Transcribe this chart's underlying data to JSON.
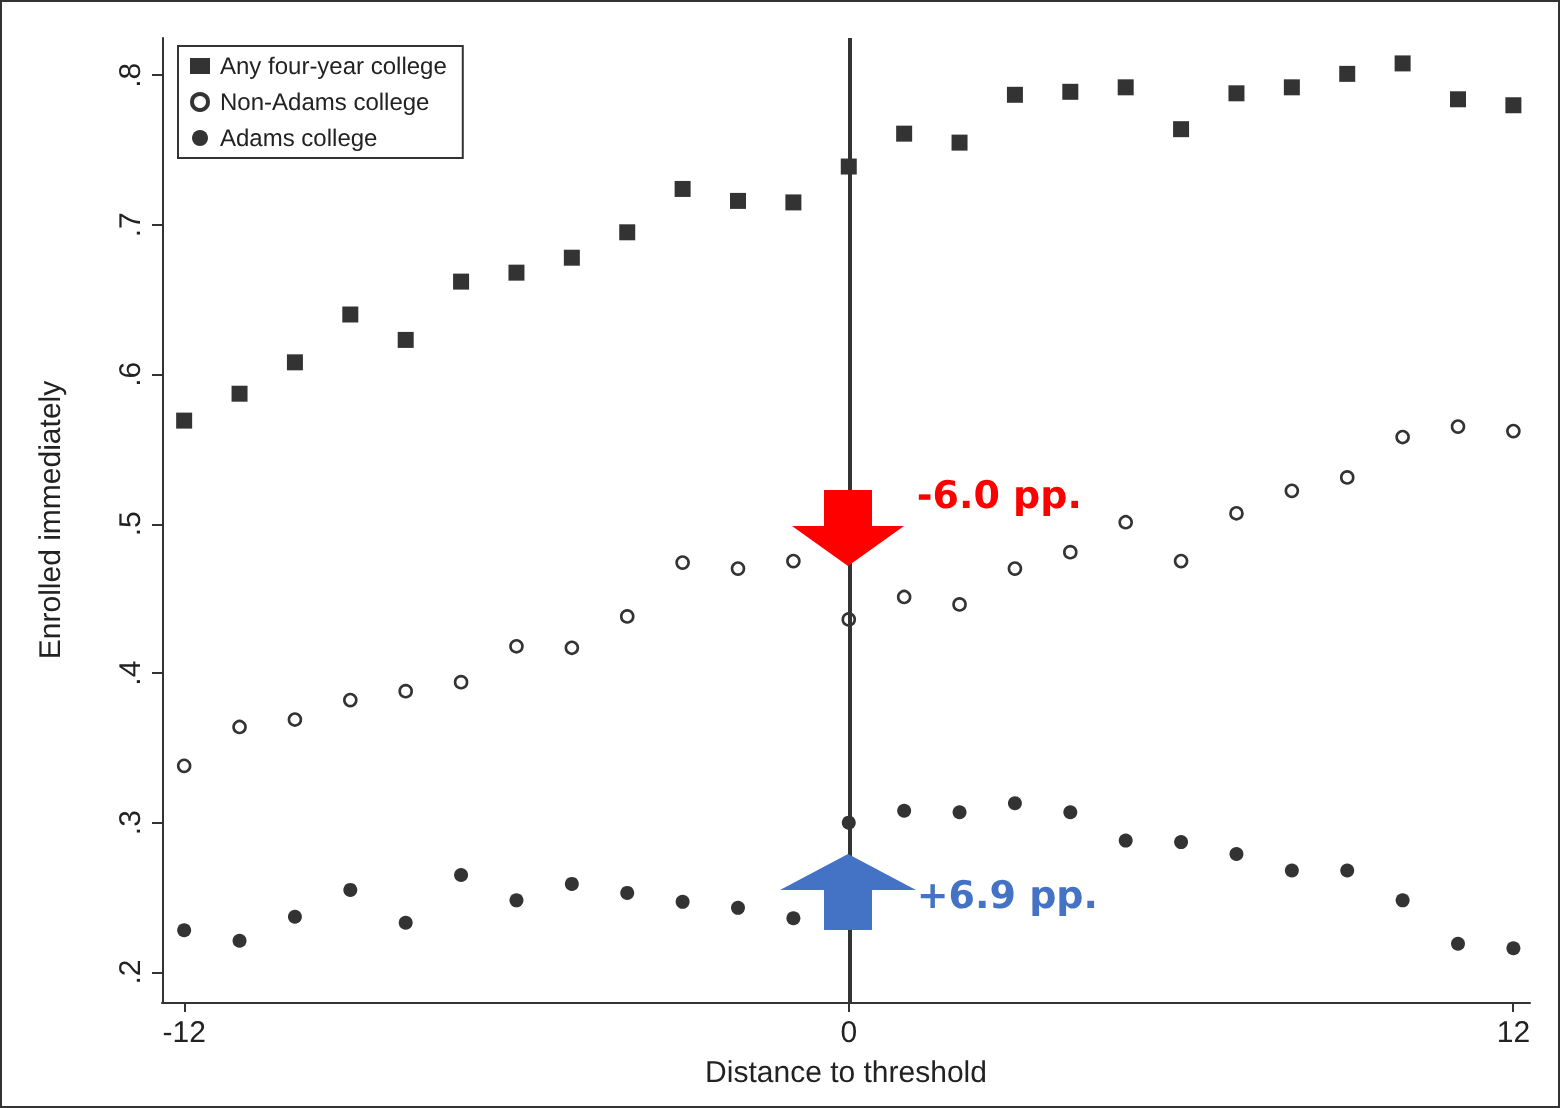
{
  "chart_data": {
    "type": "scatter",
    "xlabel": "Distance to threshold",
    "ylabel": "Enrolled immediately",
    "x": [
      -12,
      -11,
      -10,
      -9,
      -8,
      -7,
      -6,
      -5,
      -4,
      -3,
      -2,
      -1,
      0,
      1,
      2,
      3,
      4,
      5,
      6,
      7,
      8,
      9,
      10,
      11,
      12
    ],
    "series": [
      {
        "name": "Any four-year college",
        "color": "#000000",
        "marker": "square",
        "values": [
          0.569,
          0.587,
          0.608,
          0.64,
          0.623,
          0.662,
          0.668,
          0.678,
          0.695,
          0.724,
          0.716,
          0.715,
          0.739,
          0.761,
          0.755,
          0.787,
          0.789,
          0.792,
          0.764,
          0.788,
          0.792,
          0.801,
          0.808,
          0.784,
          0.78
        ]
      },
      {
        "name": "Non-Adams college",
        "color": "#000000",
        "marker": "circle",
        "values": [
          0.338,
          0.364,
          0.369,
          0.382,
          0.388,
          0.394,
          0.418,
          0.417,
          0.438,
          0.474,
          0.47,
          0.475,
          0.436,
          0.451,
          0.446,
          0.47,
          0.481,
          0.501,
          0.475,
          0.507,
          0.522,
          0.531,
          0.558,
          0.565,
          0.562
        ]
      },
      {
        "name": "Adams college",
        "color": "#000000",
        "marker": "circle",
        "values": [
          0.228,
          0.221,
          0.237,
          0.255,
          0.233,
          0.265,
          0.248,
          0.259,
          0.253,
          0.247,
          0.243,
          0.236,
          0.3,
          0.308,
          0.307,
          0.313,
          0.307,
          0.288,
          0.287,
          0.279,
          0.268,
          0.268,
          0.248,
          0.219,
          0.216
        ]
      }
    ],
    "xlim": [
      -12.4,
      12.3
    ],
    "xticks": [
      -12,
      0,
      12
    ],
    "ylim": [
      0.18,
      0.825
    ],
    "yticks": [
      {
        "value": 0.2,
        "label": ".2"
      },
      {
        "value": 0.3,
        "label": ".3"
      },
      {
        "value": 0.4,
        "label": ".4"
      },
      {
        "value": 0.5,
        "label": ".5"
      },
      {
        "value": 0.6,
        "label": ".6"
      },
      {
        "value": 0.7,
        "label": ".7"
      },
      {
        "value": 0.8,
        "label": ".8"
      }
    ],
    "ref_lines": [
      {
        "axis": "x",
        "value": 0,
        "color": "#333333"
      }
    ],
    "annotations": [
      {
        "text": "-6.0 pp.",
        "x": 0,
        "y": 0.48
      },
      {
        "text": "+6.9 pp.",
        "x": 0,
        "y": 0.26
      }
    ],
    "grid": false,
    "legend": "top left"
  }
}
